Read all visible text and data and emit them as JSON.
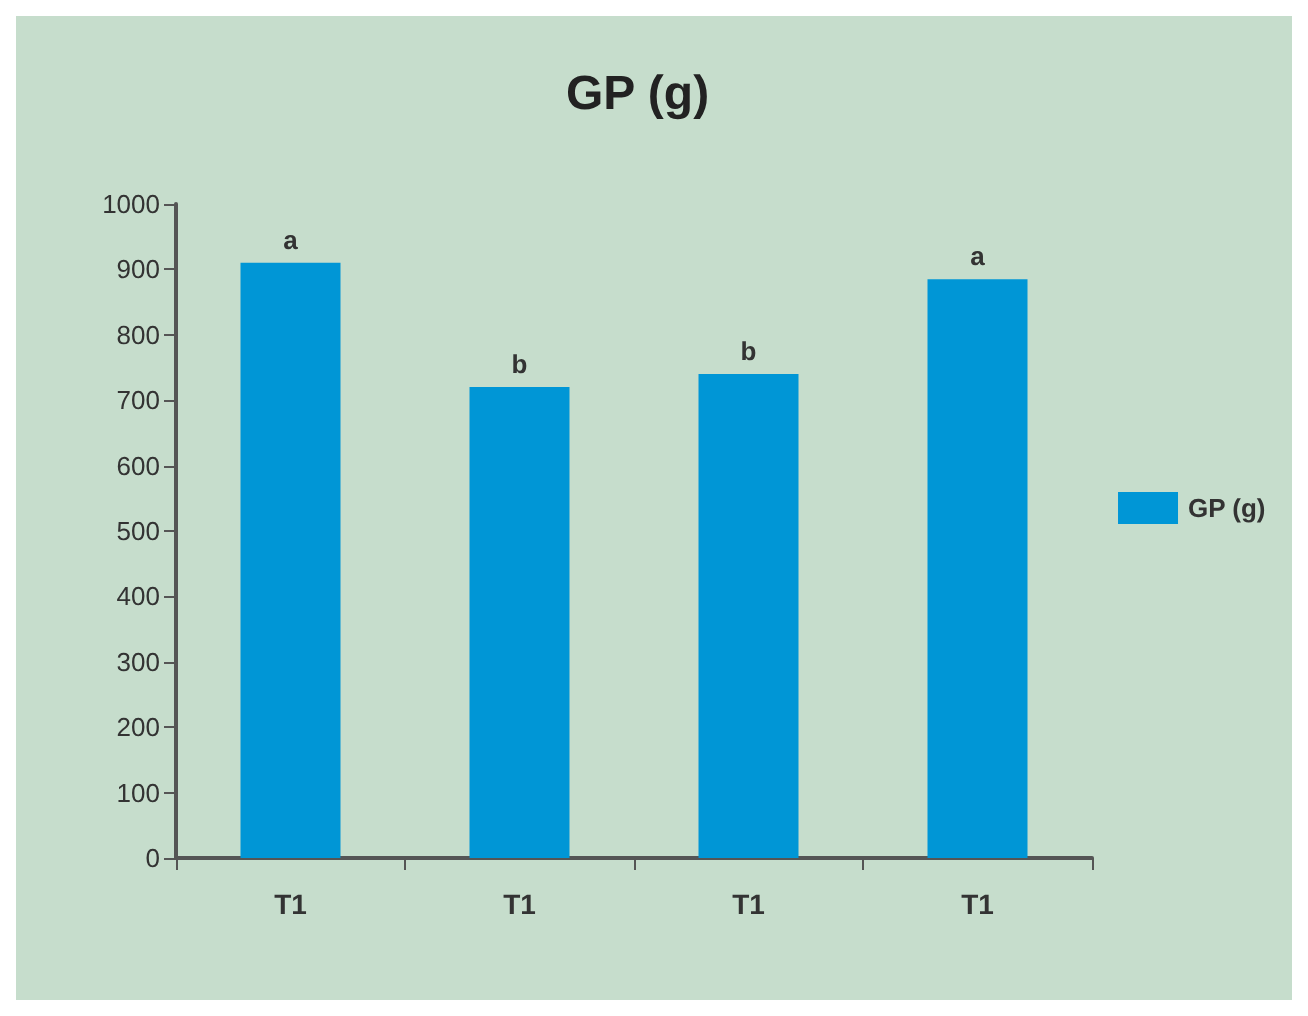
{
  "chart_data": {
    "type": "bar",
    "title": "GP (g)",
    "categories": [
      "T1",
      "T1",
      "T1",
      "T1"
    ],
    "series": [
      {
        "name": "GP (g)",
        "color": "#0096d6",
        "values": [
          910,
          720,
          740,
          885
        ],
        "value_labels": [
          "a",
          "b",
          "b",
          "a"
        ]
      }
    ],
    "ylim": [
      0,
      1000
    ],
    "yticks": [
      0,
      100,
      200,
      300,
      400,
      500,
      600,
      700,
      800,
      900,
      1000
    ],
    "grid": false,
    "legend": "right"
  }
}
